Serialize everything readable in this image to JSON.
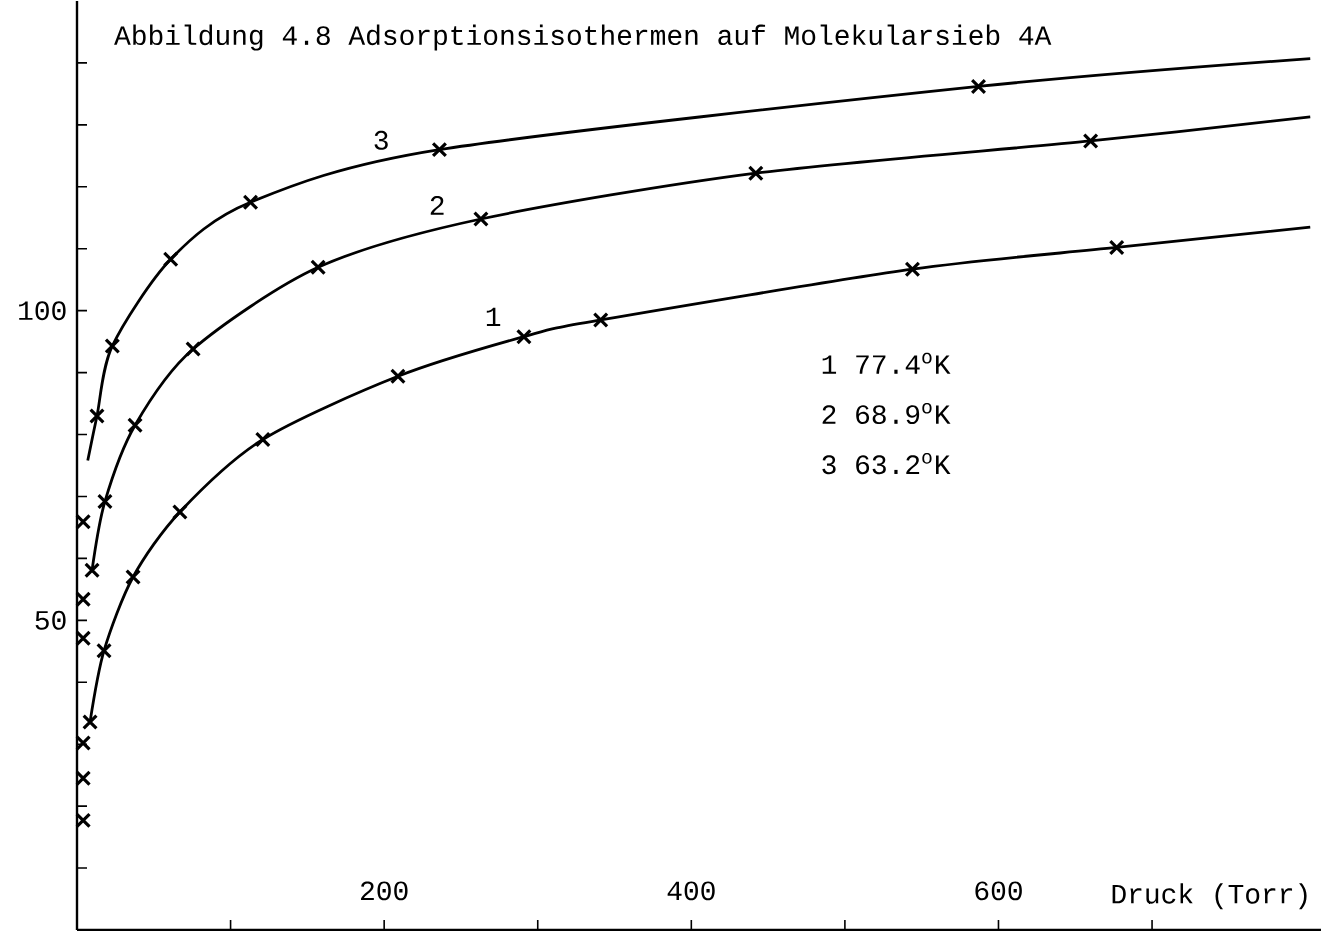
{
  "chart_data": {
    "type": "line",
    "title": "Abbildung 4.8  Adsorptionsisothermen auf Molekularsieb 4A",
    "xlabel": "Druck (Torr)",
    "xlim": [
      0,
      810
    ],
    "ylim": [
      0,
      150
    ],
    "xticks": [
      {
        "value": 100,
        "label": null
      },
      200,
      {
        "value": 300,
        "label": null
      },
      400,
      {
        "value": 500,
        "label": null
      },
      600,
      {
        "value": 700,
        "label": null
      }
    ],
    "yticks": [
      {
        "value": 10,
        "label": null
      },
      {
        "value": 20,
        "label": null
      },
      {
        "value": 30,
        "label": null
      },
      {
        "value": 40,
        "label": null
      },
      50,
      {
        "value": 60,
        "label": null
      },
      {
        "value": 70,
        "label": null
      },
      {
        "value": 80,
        "label": null
      },
      {
        "value": 90,
        "label": null
      },
      100,
      {
        "value": 110,
        "label": null
      },
      {
        "value": 120,
        "label": null
      },
      {
        "value": 130,
        "label": null
      },
      {
        "value": 140,
        "label": null
      }
    ],
    "grid": false,
    "series": [
      {
        "color": "#000000",
        "marker": "none",
        "x": [
          8.5,
          17.6,
          36.5,
          67,
          121,
          209,
          291,
          341,
          544,
          677,
          803
        ],
        "values": [
          33.6,
          45.1,
          57,
          67.5,
          79.2,
          89.4,
          95.8,
          98.5,
          106.7,
          110.2,
          113.5
        ]
      },
      {
        "color": "#000000",
        "marker": "none",
        "x": [
          9.8,
          18.2,
          37.8,
          75.6,
          157,
          263,
          442,
          660,
          803
        ],
        "values": [
          58.1,
          69.2,
          81.5,
          93.8,
          107,
          114.8,
          122.2,
          127.4,
          131.3
        ]
      },
      {
        "color": "#000000",
        "marker": "none",
        "x": [
          7,
          13,
          23,
          61,
          113,
          236,
          587,
          803
        ],
        "values": [
          75.8,
          83,
          94.3,
          108.3,
          117.5,
          126,
          136.2,
          140.7
        ]
      },
      {
        "type": "scatter",
        "color": "#000000",
        "marker": "cross",
        "x": [
          4,
          8.5,
          17.6,
          36.5,
          67,
          121,
          209,
          291,
          341,
          544,
          677
        ],
        "values": [
          17.7,
          33.6,
          45.1,
          57,
          67.5,
          79.2,
          89.4,
          95.8,
          98.5,
          106.7,
          110.2
        ]
      },
      {
        "type": "scatter",
        "color": "#000000",
        "marker": "cross",
        "x": [
          4,
          4,
          9.8,
          18.2,
          37.8,
          75.6,
          157,
          263,
          442,
          660
        ],
        "values": [
          24.5,
          47.1,
          58.1,
          69.2,
          81.5,
          93.8,
          107,
          114.8,
          122.2,
          127.4
        ]
      },
      {
        "type": "scatter",
        "color": "#000000",
        "marker": "cross",
        "x": [
          4,
          4,
          4,
          13,
          23,
          61,
          113,
          236,
          587
        ],
        "values": [
          30.2,
          53.4,
          65.9,
          83,
          94.3,
          108.3,
          117.5,
          126,
          136.2
        ]
      }
    ],
    "annotations": [
      "1",
      "2",
      "3",
      "1  77.4$^{o}$K",
      "2  68.9$^{o}$K",
      "3  63.2$^{o}$K"
    ]
  }
}
